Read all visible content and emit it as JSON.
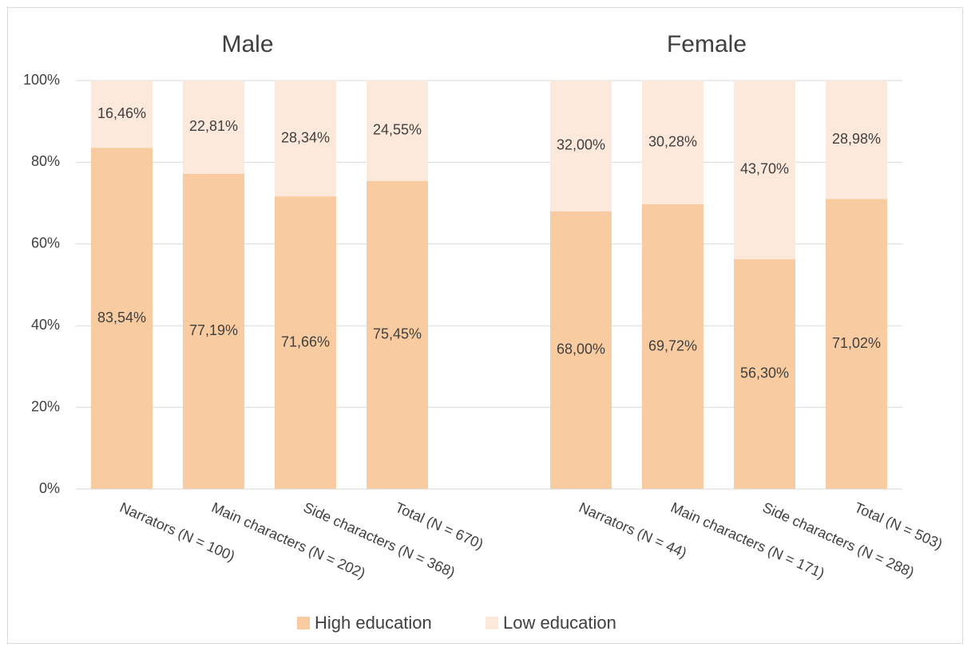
{
  "chart_data": {
    "type": "stacked_bar",
    "group_labels": [
      "Male",
      "Female"
    ],
    "categories": [
      "Narrators (N = 100)",
      "Main characters (N = 202)",
      "Side characters (N = 368)",
      "Total (N = 670)",
      null,
      "Narrators (N = 44)",
      "Main characters (N = 171)",
      "Side characters (N = 288)",
      "Total (N = 503)"
    ],
    "series": [
      {
        "name": "High education",
        "color": "#f9cba0",
        "values": [
          83.54,
          77.19,
          71.66,
          75.45,
          null,
          68.0,
          69.72,
          56.3,
          71.02
        ],
        "value_labels": [
          "83,54%",
          "77,19%",
          "71,66%",
          "75,45%",
          null,
          "68,00%",
          "69,72%",
          "56,30%",
          "71,02%"
        ]
      },
      {
        "name": "Low education",
        "color": "#fde9dc",
        "values": [
          16.46,
          22.81,
          28.34,
          24.55,
          null,
          32.0,
          30.28,
          43.7,
          28.98
        ],
        "value_labels": [
          "16,46%",
          "22,81%",
          "28,34%",
          "24,55%",
          null,
          "32,00%",
          "30,28%",
          "43,70%",
          "28,98%"
        ]
      }
    ],
    "ylim": [
      0,
      100
    ],
    "yticks": [
      {
        "value": 0,
        "label": "0%"
      },
      {
        "value": 20,
        "label": "20%"
      },
      {
        "value": 40,
        "label": "40%"
      },
      {
        "value": 60,
        "label": "60%"
      },
      {
        "value": 80,
        "label": "80%"
      },
      {
        "value": 100,
        "label": "100%"
      }
    ],
    "grid": true,
    "legend": "bottom"
  }
}
